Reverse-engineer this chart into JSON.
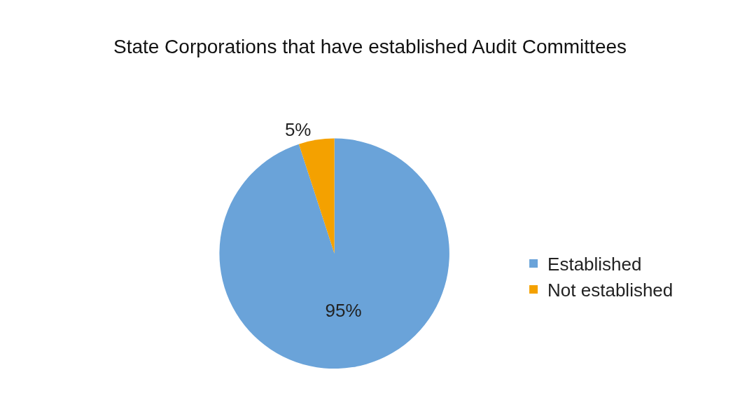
{
  "chart_data": {
    "type": "pie",
    "title": "State Corporations that have established Audit Committees",
    "categories": [
      "Established",
      "Not established"
    ],
    "values": [
      95,
      5
    ],
    "colors": [
      "#6aa3d9",
      "#f4a100"
    ],
    "value_labels": [
      "95%",
      "5%"
    ],
    "legend": "right"
  }
}
